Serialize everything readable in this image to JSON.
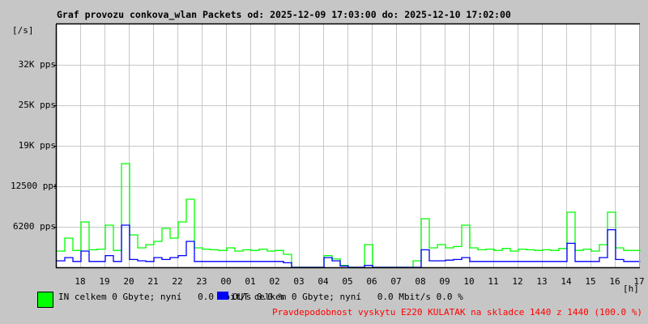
{
  "title": "Graf provozu conkova_wlan Packets od: 2025-12-09 17:03:00 do: 2025-12-10 17:02:00",
  "chart_data": {
    "type": "line",
    "title": "Graf provozu conkova_wlan Packets od: 2025-12-09 17:03:00 do: 2025-12-10 17:02:00",
    "ylabel": "[/s]",
    "xlabel": "[h]",
    "ylim": [
      0,
      37500
    ],
    "y_ticks": [
      {
        "value": 6200,
        "label": "6200 pps"
      },
      {
        "value": 12500,
        "label": "12500 pps"
      },
      {
        "value": 19000,
        "label": "19K pps"
      },
      {
        "value": 25000,
        "label": "25K pps"
      },
      {
        "value": 32000,
        "label": "32K pps"
      }
    ],
    "x_range": [
      "2025-12-09 17:03",
      "2025-12-10 17:03"
    ],
    "x_ticks": [
      "18",
      "19",
      "20",
      "21",
      "22",
      "23",
      "00",
      "01",
      "02",
      "03",
      "04",
      "05",
      "06",
      "07",
      "08",
      "09",
      "10",
      "11",
      "12",
      "13",
      "14",
      "15",
      "16",
      "17"
    ],
    "grid": true,
    "x": [
      "17:03",
      "17:23",
      "17:43",
      "18:03",
      "18:23",
      "18:43",
      "19:03",
      "19:23",
      "19:43",
      "20:03",
      "20:23",
      "20:43",
      "21:03",
      "21:23",
      "21:43",
      "22:03",
      "22:23",
      "22:43",
      "23:03",
      "23:23",
      "23:43",
      "00:03",
      "00:23",
      "00:43",
      "01:03",
      "01:23",
      "01:43",
      "02:03",
      "02:23",
      "02:43",
      "03:03",
      "03:23",
      "03:43",
      "04:03",
      "04:23",
      "04:43",
      "05:03",
      "05:23",
      "05:43",
      "06:03",
      "06:23",
      "06:43",
      "07:03",
      "07:23",
      "07:43",
      "08:03",
      "08:23",
      "08:43",
      "09:03",
      "09:23",
      "09:43",
      "10:03",
      "10:23",
      "10:43",
      "11:03",
      "11:23",
      "11:43",
      "12:03",
      "12:23",
      "12:43",
      "13:03",
      "13:23",
      "13:43",
      "14:03",
      "14:23",
      "14:43",
      "15:03",
      "15:23",
      "15:43",
      "16:03",
      "16:23",
      "16:43",
      "17:03"
    ],
    "series": [
      {
        "name": "IN",
        "color": "#00ff00",
        "values": [
          2500,
          4500,
          2600,
          7000,
          2700,
          2800,
          6500,
          2600,
          16000,
          5000,
          3000,
          3500,
          4000,
          6000,
          4500,
          7000,
          10500,
          3000,
          2800,
          2700,
          2600,
          3000,
          2500,
          2700,
          2600,
          2800,
          2500,
          2600,
          2000,
          0,
          0,
          0,
          0,
          1800,
          1300,
          300,
          0,
          0,
          3500,
          0,
          0,
          0,
          0,
          0,
          1000,
          7500,
          3000,
          3500,
          3000,
          3200,
          6500,
          3000,
          2700,
          2800,
          2600,
          2900,
          2500,
          2800,
          2700,
          2600,
          2700,
          2600,
          2900,
          8500,
          2600,
          2800,
          2500,
          3500,
          8500,
          3000,
          2600,
          2600,
          2500
        ]
      },
      {
        "name": "OUT",
        "color": "#0000ff",
        "values": [
          1000,
          1500,
          900,
          2500,
          900,
          900,
          1800,
          900,
          6500,
          1200,
          1000,
          900,
          1500,
          1200,
          1500,
          1800,
          4000,
          900,
          900,
          900,
          900,
          900,
          900,
          900,
          900,
          900,
          900,
          900,
          700,
          0,
          0,
          0,
          0,
          1500,
          1000,
          200,
          0,
          0,
          300,
          0,
          0,
          0,
          0,
          0,
          0,
          2700,
          1000,
          1000,
          1100,
          1200,
          1500,
          900,
          900,
          900,
          900,
          900,
          900,
          900,
          900,
          900,
          900,
          900,
          900,
          3700,
          900,
          900,
          900,
          1500,
          5800,
          1200,
          900,
          900,
          900
        ]
      }
    ]
  },
  "legend": {
    "in": {
      "color": "#00ff00",
      "text": "IN celkem 0 Gbyte; nyní   0.0 Mbit/s 0.0 %"
    },
    "out": {
      "color": "#0000ff",
      "text": "OUT celkem 0 Gbyte; nyní   0.0 Mbit/s 0.0 %"
    }
  },
  "footer_note": "Pravdepodobnost vyskytu E220 KULATAK na skladce 1440 z 1440 (100.0 %)",
  "colors": {
    "background": "#c6c6c6",
    "plot": "#ffffff",
    "grid": "#c8c8c8",
    "note": "#ff0000"
  }
}
